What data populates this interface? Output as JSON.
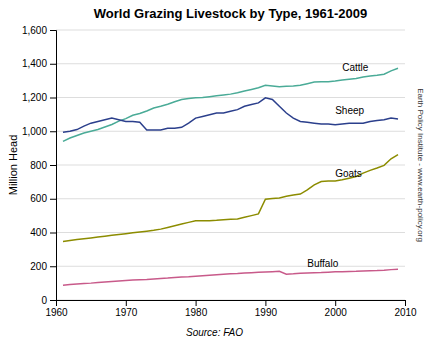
{
  "chart_data": {
    "type": "line",
    "title": "World Grazing Livestock by Type, 1961-2009",
    "y_label": "Million Head",
    "source": "Source: FAO",
    "credit": "Earth Policy Institute - www.earth-policy.org",
    "x": [
      1961,
      1962,
      1963,
      1964,
      1965,
      1966,
      1967,
      1968,
      1969,
      1970,
      1971,
      1972,
      1973,
      1974,
      1975,
      1976,
      1977,
      1978,
      1979,
      1980,
      1981,
      1982,
      1983,
      1984,
      1985,
      1986,
      1987,
      1988,
      1989,
      1990,
      1991,
      1992,
      1993,
      1994,
      1995,
      1996,
      1997,
      1998,
      1999,
      2000,
      2001,
      2002,
      2003,
      2004,
      2005,
      2006,
      2007,
      2008,
      2009
    ],
    "series": [
      {
        "color": "#4aab97",
        "values": [
          940,
          960,
          975,
          990,
          1000,
          1010,
          1025,
          1040,
          1060,
          1075,
          1095,
          1105,
          1120,
          1138,
          1148,
          1160,
          1175,
          1188,
          1194,
          1198,
          1200,
          1205,
          1210,
          1215,
          1220,
          1228,
          1238,
          1248,
          1258,
          1272,
          1268,
          1263,
          1266,
          1268,
          1272,
          1282,
          1292,
          1293,
          1294,
          1298,
          1303,
          1308,
          1313,
          1322,
          1328,
          1332,
          1338,
          1358,
          1373
        ]
      },
      {
        "color": "#2b3f8c",
        "values": [
          994,
          1000,
          1010,
          1030,
          1048,
          1058,
          1068,
          1078,
          1068,
          1058,
          1058,
          1053,
          1008,
          1008,
          1008,
          1018,
          1018,
          1023,
          1048,
          1078,
          1088,
          1098,
          1108,
          1108,
          1118,
          1128,
          1148,
          1158,
          1168,
          1198,
          1188,
          1148,
          1108,
          1078,
          1058,
          1053,
          1048,
          1043,
          1043,
          1038,
          1043,
          1048,
          1048,
          1048,
          1058,
          1063,
          1068,
          1078,
          1073
        ]
      },
      {
        "color": "#8c8c00",
        "values": [
          346,
          352,
          358,
          363,
          368,
          373,
          378,
          383,
          388,
          393,
          398,
          403,
          408,
          413,
          420,
          430,
          440,
          450,
          460,
          470,
          470,
          470,
          472,
          475,
          478,
          480,
          490,
          500,
          510,
          597,
          602,
          605,
          615,
          622,
          628,
          652,
          682,
          702,
          705,
          705,
          712,
          722,
          732,
          752,
          768,
          782,
          798,
          837,
          862
        ]
      },
      {
        "color": "#c85a8a",
        "values": [
          88,
          92,
          95,
          98,
          100,
          103,
          106,
          109,
          112,
          115,
          118,
          120,
          122,
          125,
          128,
          130,
          133,
          136,
          138,
          141,
          144,
          147,
          150,
          153,
          155,
          157,
          160,
          162,
          164,
          166,
          168,
          170,
          153,
          155,
          158,
          160,
          162,
          163,
          165,
          167,
          168,
          169,
          170,
          172,
          174,
          175,
          177,
          180,
          182
        ]
      }
    ],
    "annotations": [
      {
        "text": "Cattle",
        "x": 2001,
        "y": 1375
      },
      {
        "text": "Sheep",
        "x": 2000,
        "y": 1118
      },
      {
        "text": "Goats",
        "x": 2000,
        "y": 745
      },
      {
        "text": "Buffalo",
        "x": 1996,
        "y": 210
      }
    ],
    "xlim": [
      1960,
      2010
    ],
    "ylim": [
      0,
      1600
    ],
    "xticks": [
      1960,
      1970,
      1980,
      1990,
      2000,
      2010
    ],
    "yticks": [
      0,
      200,
      400,
      600,
      800,
      {
        "value": 1000,
        "label": "1,000"
      },
      {
        "value": 1200,
        "label": "1,200"
      },
      {
        "value": 1400,
        "label": "1,400"
      },
      {
        "value": 1600,
        "label": "1,600"
      }
    ],
    "grid": true
  }
}
